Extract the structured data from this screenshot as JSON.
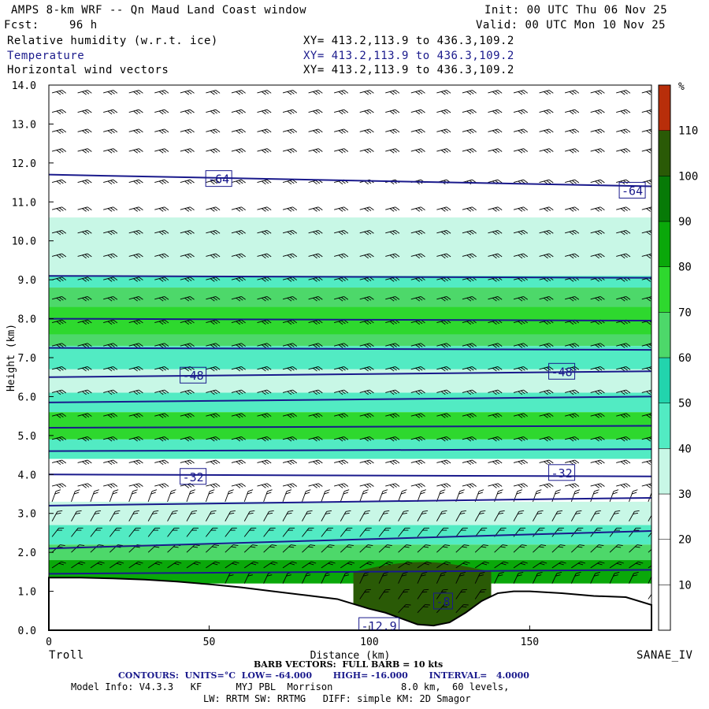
{
  "header": {
    "title": "AMPS 8-km WRF -- Qn Maud Land Coast window",
    "init": "Init: 00 UTC Thu 06 Nov 25",
    "fcst_label": "Fcst:",
    "fcst_value": "96 h",
    "valid": "Valid: 00 UTC Mon 10 Nov 25",
    "fields": [
      {
        "name": "Relative humidity (w.r.t. ice)",
        "xy": "XY= 413.2,113.9 to 436.3,109.2",
        "color": "#000000"
      },
      {
        "name": "Temperature",
        "xy": "XY= 413.2,113.9 to 436.3,109.2",
        "color": "#1a1a8c"
      },
      {
        "name": "Horizontal wind vectors",
        "xy": "XY= 413.2,113.9 to 436.3,109.2",
        "color": "#000000"
      }
    ]
  },
  "footer": {
    "left_endpoint": "Troll",
    "right_endpoint": "SANAE_IV",
    "barb_note": "BARB VECTORS:  FULL BARB = 10 kts",
    "contours_note": "CONTOURS:  UNITS=°C  LOW= -64.000       HIGH= -16.000       INTERVAL=   4.0000",
    "model_info": "Model Info: V4.3.3   KF      MYJ PBL  Morrison            8.0 km,  60 levels,",
    "model_info2": "LW: RRTM SW: RRTMG   DIFF: simple KM: 2D Smagor"
  },
  "chart_data": {
    "type": "heatmap",
    "xlabel": "Distance (km)",
    "ylabel": "Height (km)",
    "xlim": [
      0,
      188
    ],
    "ylim": [
      0,
      14
    ],
    "xticks": [
      0,
      50,
      100,
      150
    ],
    "yticks": [
      "0.0",
      "1.0",
      "2.0",
      "3.0",
      "4.0",
      "5.0",
      "6.0",
      "7.0",
      "8.0",
      "9.0",
      "10.0",
      "11.0",
      "12.0",
      "13.0",
      "14.0"
    ],
    "colorbar": {
      "unit": "%",
      "levels": [
        0,
        10,
        20,
        30,
        40,
        50,
        60,
        70,
        80,
        90,
        100,
        110,
        120
      ],
      "labels": [
        "10",
        "20",
        "30",
        "40",
        "50",
        "60",
        "70",
        "80",
        "90",
        "100",
        "110"
      ],
      "colors": [
        "#ffffff",
        "#ffffff",
        "#ffffff",
        "#c8f7e6",
        "#52ebc3",
        "#22d4ad",
        "#4dd86a",
        "#2ed82e",
        "#0aa80a",
        "#077a07",
        "#2a5a06",
        "#b82e0a"
      ]
    },
    "rh_bands": [
      {
        "ylo": 10.6,
        "yhi": 9.1,
        "color": "#c8f7e6"
      },
      {
        "ylo": 9.1,
        "yhi": 8.8,
        "color": "#52ebc3"
      },
      {
        "ylo": 8.8,
        "yhi": 7.3,
        "color": "#4dd86a"
      },
      {
        "ylo": 8.3,
        "yhi": 7.6,
        "color": "#2ed82e"
      },
      {
        "ylo": 7.3,
        "yhi": 6.7,
        "color": "#52ebc3"
      },
      {
        "ylo": 6.7,
        "yhi": 6.1,
        "color": "#c8f7e6"
      },
      {
        "ylo": 6.1,
        "yhi": 5.6,
        "color": "#52ebc3"
      },
      {
        "ylo": 5.6,
        "yhi": 4.9,
        "color": "#2ed82e"
      },
      {
        "ylo": 4.9,
        "yhi": 4.4,
        "color": "#52ebc3"
      },
      {
        "ylo": 3.3,
        "yhi": 2.7,
        "color": "#c8f7e6"
      },
      {
        "ylo": 2.7,
        "yhi": 2.2,
        "color": "#52ebc3"
      },
      {
        "ylo": 2.2,
        "yhi": 1.8,
        "color": "#4dd86a"
      },
      {
        "ylo": 1.8,
        "yhi": 1.2,
        "color": "#0aa80a"
      }
    ],
    "low_patch": {
      "x": [
        95,
        138
      ],
      "color": "#2a5a06",
      "ytop": 1.5
    },
    "terrain": {
      "x": [
        0,
        10,
        20,
        30,
        40,
        50,
        60,
        70,
        80,
        90,
        100,
        105,
        110,
        115,
        120,
        125,
        130,
        135,
        140,
        145,
        150,
        160,
        170,
        180,
        188
      ],
      "y": [
        1.35,
        1.35,
        1.33,
        1.3,
        1.25,
        1.18,
        1.1,
        1.0,
        0.9,
        0.8,
        0.55,
        0.45,
        0.3,
        0.15,
        0.12,
        0.2,
        0.45,
        0.75,
        0.95,
        1.0,
        1.0,
        0.95,
        0.88,
        0.85,
        0.65
      ]
    },
    "temperature_contours": [
      {
        "y0": 11.7,
        "y1": 11.4
      },
      {
        "y0": 9.1,
        "y1": 9.05
      },
      {
        "y0": 8.0,
        "y1": 7.95
      },
      {
        "y0": 7.25,
        "y1": 7.2
      },
      {
        "y0": 6.5,
        "y1": 6.65
      },
      {
        "y0": 5.85,
        "y1": 6.0
      },
      {
        "y0": 5.2,
        "y1": 5.25
      },
      {
        "y0": 4.6,
        "y1": 4.65
      },
      {
        "y0": 4.0,
        "y1": 3.95
      },
      {
        "y0": 3.2,
        "y1": 3.4
      },
      {
        "y0": 2.1,
        "y1": 2.55
      },
      {
        "y0": 1.45,
        "y1": 1.55
      }
    ],
    "contour_labels": [
      {
        "text": "-64",
        "x": 53,
        "y": 11.6
      },
      {
        "text": "-64",
        "x": 182,
        "y": 11.3
      },
      {
        "text": "-48",
        "x": 45,
        "y": 6.55
      },
      {
        "text": "-48",
        "x": 160,
        "y": 6.65
      },
      {
        "text": "-32",
        "x": 45,
        "y": 3.95
      },
      {
        "text": "-32",
        "x": 160,
        "y": 4.05
      },
      {
        "text": "-12.9",
        "x": 103,
        "y": 0.12
      },
      {
        "text": "-8",
        "x": 123,
        "y": 0.75
      }
    ],
    "barbs": {
      "upper_heights": [
        13.8,
        13.3,
        12.8,
        12.3,
        11.5,
        10.8,
        10.2,
        9.6,
        9.0,
        8.5,
        7.9,
        7.3,
        6.7,
        6.1,
        5.5,
        4.9,
        4.3,
        3.7
      ],
      "upper_dx": 8,
      "lower_heights": [
        3.3,
        2.8,
        2.4,
        2.0,
        1.6,
        1.2,
        0.8,
        0.45
      ],
      "lower_dx": 6
    }
  }
}
